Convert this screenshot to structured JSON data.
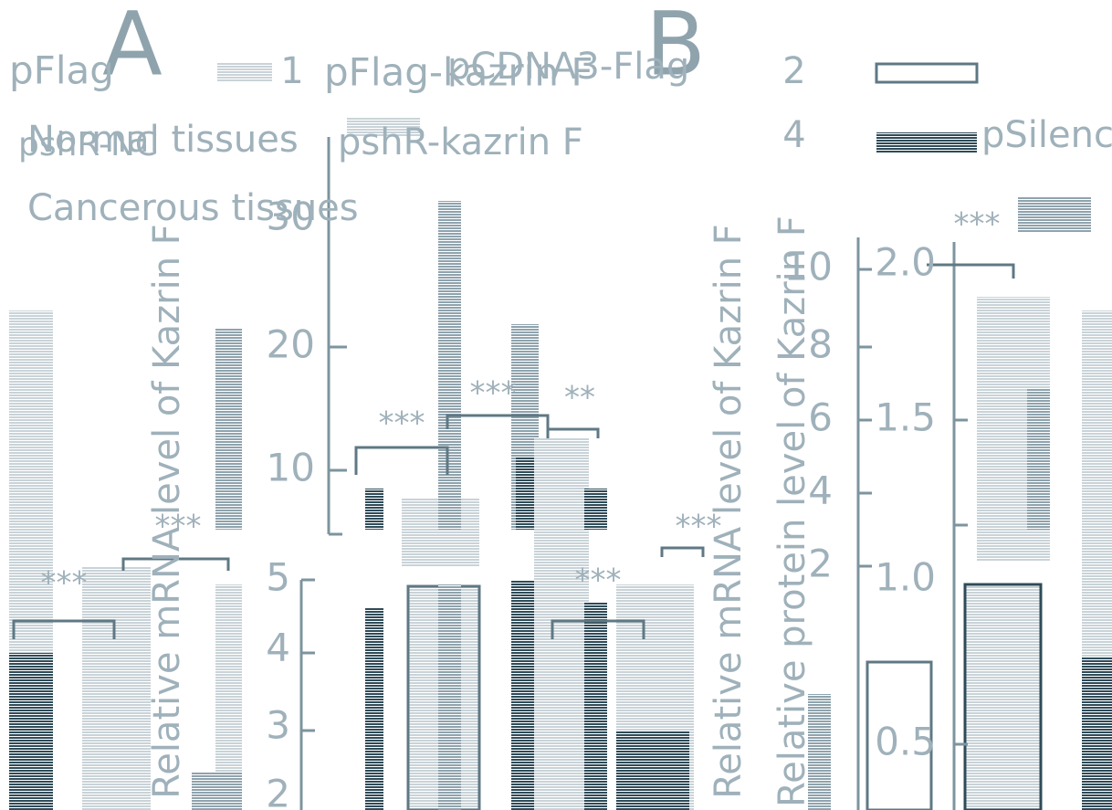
{
  "panels": [
    {
      "label": "A"
    },
    {
      "label": "B"
    }
  ],
  "legend": {
    "items": [
      "pFlag",
      "pFlag-kazrin F",
      "pCDNA3-Flag",
      "Normal tissues",
      "Cancerous tissues",
      "pshR-NC",
      "pshR-kazrin F",
      "pSilencer"
    ],
    "numbers": [
      "1",
      "2",
      "4"
    ]
  },
  "axes": [
    {
      "label": "Relative mRNA level of Kazrin F",
      "ticks": [
        "30",
        "20",
        "10"
      ]
    },
    {
      "ticks": [
        "5",
        "4",
        "3",
        "2"
      ]
    },
    {
      "label": "Relative mRNA level of Kazrin F",
      "ticks": [
        "10",
        "8",
        "6",
        "4",
        "2"
      ]
    },
    {
      "label": "Relative protein level of Kazrin F",
      "ticks": [
        "2.0",
        "1.5",
        "1.0",
        "0.5"
      ]
    }
  ],
  "annotations": [
    "***",
    "***",
    "***",
    "**",
    "***",
    "***",
    "***",
    "***"
  ]
}
